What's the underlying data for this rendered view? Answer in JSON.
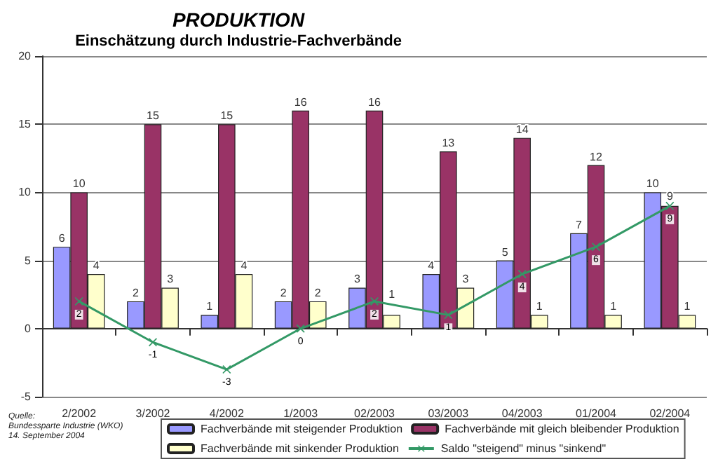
{
  "chart_data": {
    "type": "bar",
    "title": "PRODUKTION",
    "subtitle": "Einschätzung durch Industrie-Fachverbände",
    "categories": [
      "2/2002",
      "3/2002",
      "4/2002",
      "1/2003",
      "02/2003",
      "03/2003",
      "04/2003",
      "01/2004",
      "02/2004"
    ],
    "series": [
      {
        "name": "Fachverbände mit steigender Produktion",
        "color": "#9999ff",
        "values": [
          6,
          2,
          1,
          2,
          3,
          4,
          5,
          7,
          10
        ]
      },
      {
        "name": "Fachverbände mit gleich bleibender Produktion",
        "color": "#993366",
        "values": [
          10,
          15,
          15,
          16,
          16,
          13,
          14,
          12,
          9
        ]
      },
      {
        "name": "Fachverbände mit sinkender Produktion",
        "color": "#ffffcc",
        "values": [
          4,
          3,
          4,
          2,
          1,
          3,
          1,
          1,
          1
        ]
      },
      {
        "name": "Saldo \"steigend\" minus \"sinkend\"",
        "type": "line",
        "color": "#339966",
        "values": [
          2,
          -1,
          -3,
          0,
          2,
          1,
          4,
          6,
          9
        ],
        "marker": "cross"
      }
    ],
    "ylim": [
      -5,
      20
    ],
    "yticks": [
      -5,
      0,
      5,
      10,
      15,
      20
    ],
    "grid": "y",
    "legend": "bottom",
    "data_labels": true,
    "annotations": [
      "Quelle:\nBundessparte Industrie (WKO)\n14. September 2004"
    ]
  }
}
